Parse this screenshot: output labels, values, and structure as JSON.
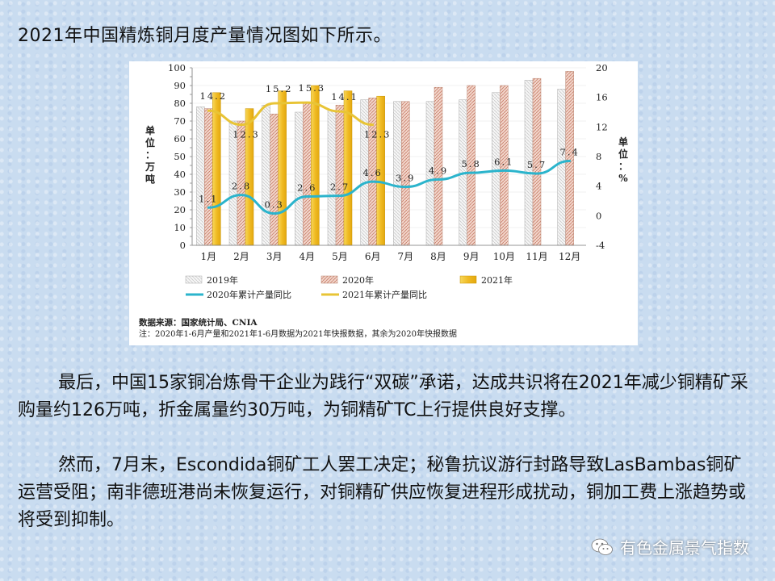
{
  "headline": "2021年中国精炼铜月度产量情况图如下所示。",
  "chart_data": {
    "type": "bar",
    "categories": [
      "1月",
      "2月",
      "3月",
      "4月",
      "5月",
      "6月",
      "7月",
      "8月",
      "9月",
      "10月",
      "11月",
      "12月"
    ],
    "series": [
      {
        "name": "2019年",
        "kind": "bar",
        "axis": "left",
        "values": [
          78,
          70,
          79,
          75,
          76,
          82,
          81,
          81,
          82,
          86,
          93,
          88
        ]
      },
      {
        "name": "2020年",
        "kind": "bar",
        "axis": "left",
        "values": [
          77,
          70,
          74,
          80,
          79,
          83,
          81,
          89,
          90,
          90,
          94,
          98
        ]
      },
      {
        "name": "2021年",
        "kind": "bar",
        "axis": "left",
        "values": [
          86,
          77,
          87,
          90,
          87,
          84,
          null,
          null,
          null,
          null,
          null,
          null
        ]
      },
      {
        "name": "2020年累计产量同比",
        "kind": "line",
        "axis": "right",
        "color": "#2bb4cc",
        "values": [
          1.1,
          2.8,
          0.3,
          2.6,
          2.7,
          4.6,
          3.9,
          4.9,
          5.8,
          6.1,
          5.7,
          7.4
        ]
      },
      {
        "name": "2021年累计产量同比",
        "kind": "line",
        "axis": "right",
        "color": "#e8c436",
        "values": [
          14.2,
          12.3,
          15.2,
          15.3,
          14.1,
          12.3,
          null,
          null,
          null,
          null,
          null,
          null
        ]
      }
    ],
    "left_axis": {
      "label": "单位：万吨",
      "min": 0,
      "max": 100,
      "ticks": [
        "0",
        "5",
        "10",
        "15",
        "20",
        "25",
        "30",
        "35",
        "40",
        "45",
        "50",
        "55",
        "60",
        "65",
        "70",
        "75",
        "80",
        "85",
        "90",
        "95",
        "100"
      ]
    },
    "right_axis": {
      "label": "单位：%",
      "min": -4,
      "max": 20,
      "ticks": [
        "-4",
        "0",
        "4",
        "8",
        "12",
        "16",
        "20"
      ]
    },
    "line_labels_2020": [
      "1.1",
      "2.8",
      "0.3",
      "2.6",
      "2.7",
      "4.6",
      "3.9",
      "4.9",
      "5.8",
      "6.1",
      "5.7",
      "7.4"
    ],
    "line_labels_2021": [
      "14.2",
      "12.3",
      "15.2",
      "15.3",
      "14.1",
      "12.3"
    ],
    "legend": [
      "2019年",
      "2020年",
      "2021年",
      "2020年累计产量同比",
      "2021年累计产量同比"
    ],
    "legend_position": "bottom",
    "source": "数据来源：国家统计局、CNIA",
    "note": "注：2020年1-6月产量和2021年1-6月数据为2021年快报数据，其余为2020年快报数据",
    "colors": {
      "bar2019": "#f4f4f4",
      "bar2020": "#f0c8b8",
      "bar2021": "#f2c12e"
    }
  },
  "paragraph1": "最后，中国15家铜冶炼骨干企业为践行“双碳”承诺，达成共识将在2021年减少铜精矿采购量约126万吨，折金属量约30万吨，为铜精矿TC上行提供良好支撑。",
  "paragraph2": "然而，7月末，Escondida铜矿工人罢工决定；秘鲁抗议游行封路导致LasBambas铜矿运营受阻；南非德班港尚未恢复运行，对铜精矿供应恢复进程形成扰动，铜加工费上涨趋势或将受到抑制。",
  "watermark": {
    "text": "有色金属景气指数",
    "icon": "wechat-icon"
  }
}
